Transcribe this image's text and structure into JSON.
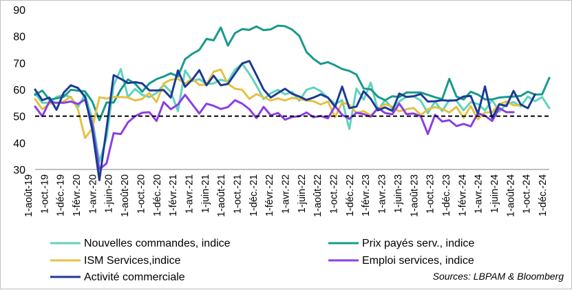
{
  "chart_data": {
    "type": "line",
    "title": "",
    "xlabel": "",
    "ylabel": "",
    "ylim": [
      30,
      90
    ],
    "yticks": [
      30,
      40,
      50,
      60,
      70,
      80,
      90
    ],
    "reference_line": 50,
    "legend_position": "bottom",
    "x_tick_labels": [
      "1-août-19",
      "1-oct.-19",
      "1-déc.-19",
      "1-févr.-20",
      "1-avr.-20",
      "1-juin-20",
      "1-août-20",
      "1-oct.-20",
      "1-déc.-20",
      "1-févr.-21",
      "1-avr.-21",
      "1-juin-21",
      "1-août-21",
      "1-oct.-21",
      "1-déc.-21",
      "1-févr.-22",
      "1-avr.-22",
      "1-juin-22",
      "1-août-22",
      "1-oct.-22",
      "1-déc.-22",
      "1-févr.-23",
      "1-avr.-23",
      "1-juin-23",
      "1-août-23",
      "1-oct.-23",
      "1-déc.-23",
      "1-févr.-24",
      "1-avr.-24",
      "1-juin-24",
      "1-août-24",
      "1-oct.-24",
      "1-déc.-24"
    ],
    "series": [
      {
        "name": "Nouvelles commandes, indice",
        "color": "#5fd3bd",
        "values": [
          58.5,
          55.0,
          55.0,
          57.2,
          58.0,
          57.1,
          53.4,
          58.2,
          49.0,
          32.9,
          41.9,
          61.6,
          67.7,
          57.2,
          60.2,
          58.0,
          57.2,
          58.7,
          61.8,
          59.2,
          51.9,
          67.2,
          63.2,
          63.9,
          62.1,
          62.3,
          63.7,
          63.0,
          67.5,
          69.7,
          65.9,
          61.5,
          56.4,
          58.6,
          59.9,
          58.2,
          59.1,
          55.8,
          59.9,
          60.8,
          59.4,
          56.9,
          54.6,
          56.0,
          45.2,
          60.4,
          56.2,
          62.6,
          52.2,
          56.1,
          52.9,
          55.5,
          57.3,
          57.5,
          55.8,
          51.1,
          55.5,
          51.9,
          56.1,
          55.8,
          52.2,
          55.3,
          54.6,
          52.2,
          56.1,
          51.7,
          54.6,
          55.3,
          53.7,
          57.4,
          55.6,
          57.2,
          53.0
        ]
      },
      {
        "name": "Prix payés serv., indice",
        "color": "#179a8c",
        "values": [
          58.0,
          59.6,
          56.2,
          56.7,
          57.3,
          59.9,
          59.6,
          59.3,
          55.5,
          48.5,
          55.1,
          55.1,
          60.0,
          63.8,
          62.2,
          59.2,
          62.3,
          63.9,
          64.9,
          66.1,
          64.9,
          71.4,
          73.4,
          74.9,
          79.0,
          78.5,
          83.3,
          76.5,
          81.2,
          82.7,
          82.4,
          83.7,
          82.3,
          82.6,
          84.0,
          83.8,
          82.5,
          80.1,
          74.1,
          71.5,
          69.6,
          70.3,
          69.1,
          67.7,
          67.0,
          65.6,
          60.4,
          60.1,
          57.3,
          56.0,
          57.5,
          57.2,
          58.9,
          58.9,
          58.9,
          58.0,
          57.1,
          56.4,
          64.0,
          57.4,
          56.3,
          59.2,
          58.1,
          56.3,
          56.3,
          57.0,
          57.2,
          57.4,
          57.6,
          59.2,
          58.1,
          58.2,
          64.4
        ]
      },
      {
        "name": "ISM Services,indice",
        "color": "#e5c043",
        "values": [
          56.4,
          52.6,
          54.7,
          55.0,
          55.5,
          57.3,
          52.5,
          41.8,
          45.4,
          57.1,
          56.6,
          57.2,
          57.2,
          57.0,
          55.9,
          56.5,
          58.7,
          55.3,
          62.3,
          63.7,
          64.0,
          62.3,
          64.1,
          61.7,
          61.9,
          66.7,
          67.5,
          62.2,
          60.3,
          59.9,
          56.5,
          58.3,
          57.1,
          55.9,
          56.7,
          55.9,
          56.9,
          56.4,
          55.9,
          55.6,
          54.4,
          55.5,
          49.6,
          55.2,
          54.3,
          51.2,
          51.9,
          50.3,
          52.7,
          54.5,
          53.6,
          51.8,
          52.6,
          53.1,
          50.4,
          52.6,
          53.4,
          52.7,
          51.4,
          53.5,
          49.4,
          53.8,
          48.8,
          51.4,
          51.5,
          54.5,
          55.5,
          54.1,
          54.0
        ]
      },
      {
        "name": "Emploi services, indice",
        "color": "#8b3fe3",
        "values": [
          53.6,
          50.0,
          55.5,
          55.0,
          55.0,
          55.5,
          54.6,
          56.2,
          47.0,
          30.0,
          32.3,
          43.6,
          43.3,
          47.7,
          50.0,
          51.3,
          51.5,
          48.2,
          55.3,
          52.6,
          54.4,
          58.0,
          54.5,
          51.0,
          54.7,
          53.9,
          52.7,
          53.4,
          56.0,
          54.7,
          52.6,
          49.3,
          53.5,
          50.3,
          51.2,
          48.7,
          49.7,
          50.0,
          51.4,
          49.6,
          50.1,
          49.2,
          53.8,
          50.5,
          49.0,
          51.3,
          50.8,
          49.8,
          53.1,
          51.2,
          50.7,
          54.7,
          50.8,
          51.0,
          50.0,
          43.3,
          50.5,
          48.0,
          48.5,
          46.3,
          47.1,
          46.2,
          51.1,
          50.2,
          48.2,
          53.0,
          51.5,
          51.5
        ]
      },
      {
        "name": "Activité commerciale",
        "color": "#1c3b94",
        "values": [
          60.0,
          56.0,
          57.0,
          52.4,
          58.8,
          61.6,
          60.6,
          57.2,
          45.0,
          26.0,
          45.4,
          65.4,
          64.0,
          62.4,
          62.8,
          62.3,
          59.7,
          59.7,
          59.8,
          57.0,
          67.2,
          61.0,
          63.7,
          67.3,
          61.6,
          65.2,
          61.6,
          62.1,
          66.0,
          69.8,
          70.7,
          65.4,
          60.0,
          57.0,
          58.7,
          60.3,
          58.4,
          57.4,
          56.1,
          57.0,
          58.2,
          57.0,
          53.5,
          61.1,
          53.0,
          53.6,
          59.4,
          56.5,
          52.2,
          53.3,
          52.0,
          58.5,
          57.2,
          57.5,
          58.3,
          55.5,
          55.6,
          56.0,
          55.8,
          56.0,
          57.4,
          57.6,
          50.9,
          61.2,
          49.3,
          54.5,
          53.8,
          59.5,
          54.4,
          53.0,
          58.2
        ]
      }
    ]
  },
  "legend": [
    {
      "label": "Nouvelles commandes, indice",
      "color": "#5fd3bd"
    },
    {
      "label": "Prix payés serv., indice",
      "color": "#179a8c"
    },
    {
      "label": "ISM Services,indice",
      "color": "#e5c043"
    },
    {
      "label": "Emploi services, indice",
      "color": "#8b3fe3"
    },
    {
      "label": "Activité commerciale",
      "color": "#1c3b94"
    }
  ],
  "source": "Sources: LBPAM & Bloomberg"
}
